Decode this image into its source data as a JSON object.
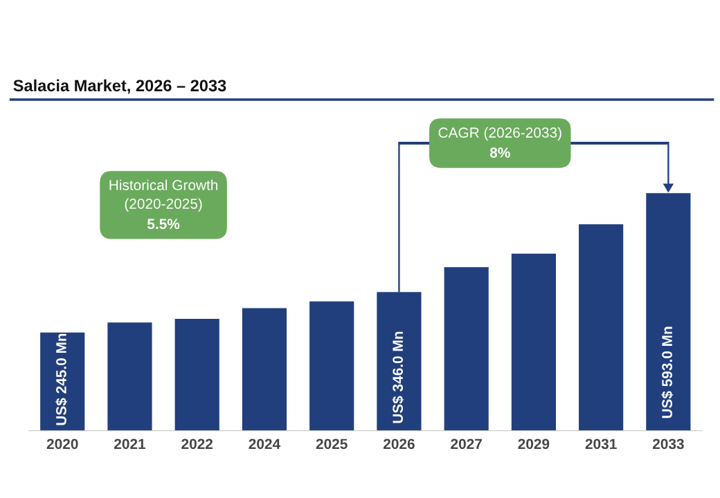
{
  "chart_data": {
    "type": "bar",
    "title": "Salacia Market, 2026 – 2033",
    "categories": [
      "2020",
      "2021",
      "2022",
      "2024",
      "2025",
      "2026",
      "2027",
      "2029",
      "2031",
      "2033"
    ],
    "values": [
      245.0,
      270,
      279,
      306,
      323,
      346.0,
      408,
      442,
      515,
      593.0
    ],
    "value_labels": [
      "US$ 245.0 Mn",
      null,
      null,
      null,
      null,
      "US$ 346.0 Mn",
      null,
      null,
      null,
      "US$ 593.0 Mn"
    ],
    "color": "#213f7d",
    "annotations": [
      "Historical Growth\n(2020-2025)\n5.5%",
      "CAGR (2026-2033)\n8%"
    ],
    "grid": false,
    "legend": false
  }
}
